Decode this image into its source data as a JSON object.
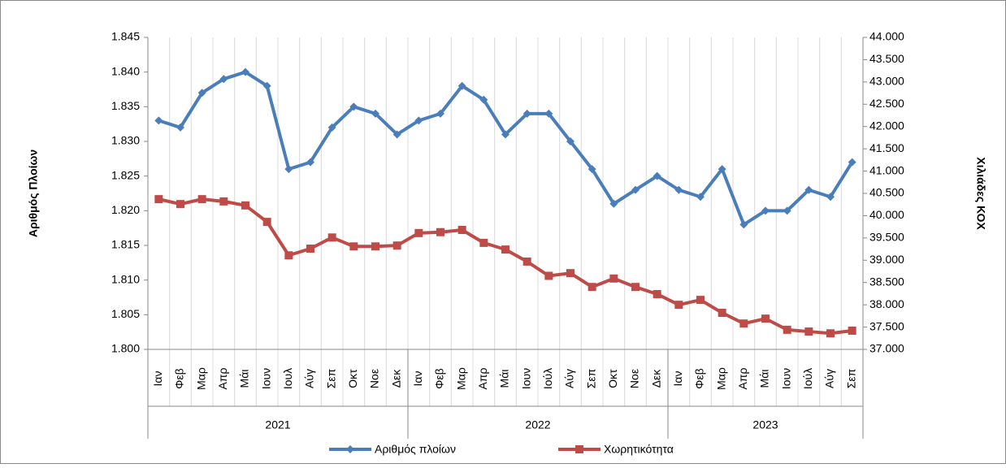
{
  "chart_data": {
    "type": "line",
    "year_groups": [
      {
        "label": "2021",
        "months": [
          "Ιαν",
          "Φεβ",
          "Μαρ",
          "Απρ",
          "Μάι",
          "Ιουν",
          "Ιουλ",
          "Αύγ",
          "Σεπ",
          "Οκτ",
          "Νοε",
          "Δεκ"
        ]
      },
      {
        "label": "2022",
        "months": [
          "Ιαν",
          "Φεβ",
          "Μαρ",
          "Απρ",
          "Μάι",
          "Ιουν",
          "Ιούλ",
          "Αύγ",
          "Σεπ",
          "Οκτ",
          "Νοε",
          "Δεκ"
        ]
      },
      {
        "label": "2023",
        "months": [
          "Ιαν",
          "Φεβ",
          "Μαρ",
          "Απρ",
          "Μάι",
          "Ιουν",
          "Ιούλ",
          "Αύγ",
          "Σεπ"
        ]
      }
    ],
    "ylabel": "Αριθμός Πλοίων",
    "y2label": "Χιλιάδες ΚΟΧ",
    "ylim": [
      1800,
      1845
    ],
    "yticks": [
      {
        "value": 1800,
        "label": "1.800"
      },
      {
        "value": 1805,
        "label": "1.805"
      },
      {
        "value": 1810,
        "label": "1.810"
      },
      {
        "value": 1815,
        "label": "1.815"
      },
      {
        "value": 1820,
        "label": "1.820"
      },
      {
        "value": 1825,
        "label": "1.825"
      },
      {
        "value": 1830,
        "label": "1.830"
      },
      {
        "value": 1835,
        "label": "1.835"
      },
      {
        "value": 1840,
        "label": "1.840"
      },
      {
        "value": 1845,
        "label": "1.845"
      }
    ],
    "y2lim": [
      37000,
      44000
    ],
    "y2ticks": [
      {
        "value": 37000,
        "label": "37.000"
      },
      {
        "value": 37500,
        "label": "37.500"
      },
      {
        "value": 38000,
        "label": "38.000"
      },
      {
        "value": 38500,
        "label": "38.500"
      },
      {
        "value": 39000,
        "label": "39.000"
      },
      {
        "value": 39500,
        "label": "39.500"
      },
      {
        "value": 40000,
        "label": "40.000"
      },
      {
        "value": 40500,
        "label": "40.500"
      },
      {
        "value": 41000,
        "label": "41.000"
      },
      {
        "value": 41500,
        "label": "41.500"
      },
      {
        "value": 42000,
        "label": "42.000"
      },
      {
        "value": 42500,
        "label": "42.500"
      },
      {
        "value": 43000,
        "label": "43.000"
      },
      {
        "value": 43500,
        "label": "43.500"
      },
      {
        "value": 44000,
        "label": "44.000"
      }
    ],
    "series": [
      {
        "name": "Αριθμός πλοίων",
        "color": "#4a7ebb",
        "marker": "diamond",
        "values": [
          1833,
          1832,
          1837,
          1839,
          1840,
          1838,
          1826,
          1827,
          1832,
          1835,
          1834,
          1831,
          1833,
          1834,
          1838,
          1836,
          1831,
          1834,
          1834,
          1830,
          1826,
          1821,
          1823,
          1825,
          1823,
          1822,
          1826,
          1818,
          1820,
          1820,
          1823,
          1822,
          1827
        ]
      },
      {
        "name": "Χωρητικότητα",
        "color": "#be4b48",
        "marker": "square",
        "axis": "y2",
        "values": [
          40370,
          40260,
          40370,
          40320,
          40230,
          39860,
          39110,
          39260,
          39510,
          39310,
          39310,
          39330,
          39610,
          39630,
          39680,
          39390,
          39240,
          38970,
          38650,
          38710,
          38400,
          38590,
          38400,
          38240,
          38000,
          38110,
          37820,
          37580,
          37690,
          37440,
          37400,
          37360,
          37420
        ]
      }
    ],
    "legend": "bottom"
  }
}
